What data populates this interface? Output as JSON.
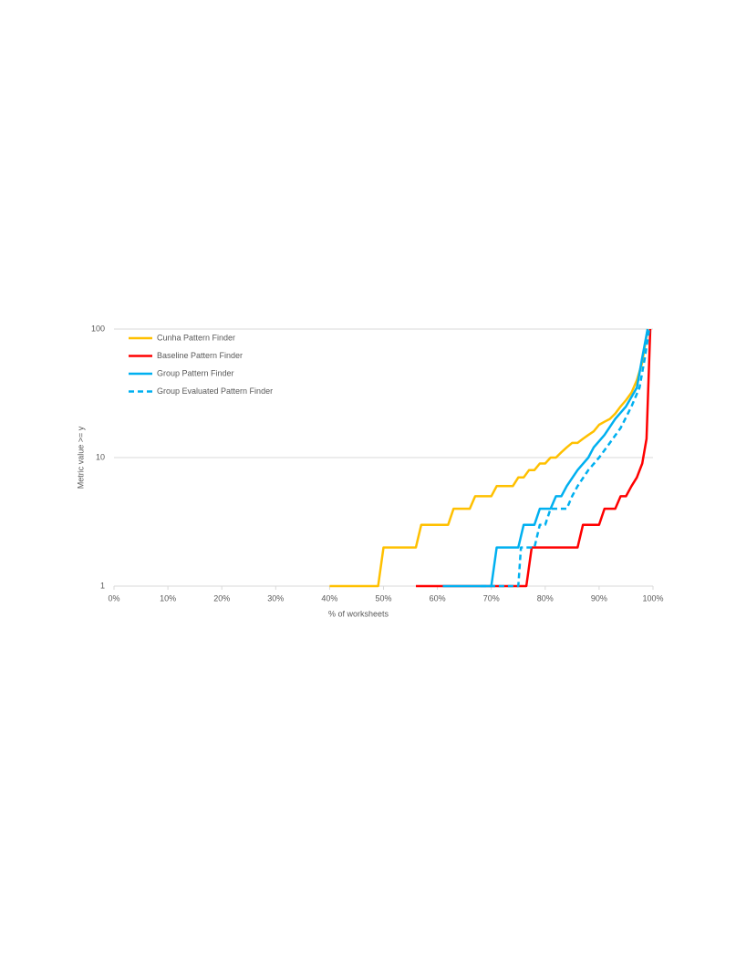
{
  "chart_data": {
    "type": "line",
    "xlabel": "% of worksheets",
    "ylabel": "Metric value >= y",
    "xlim": [
      0,
      100
    ],
    "xticks": [
      {
        "value": 0,
        "label": "0%"
      },
      {
        "value": 10,
        "label": "10%"
      },
      {
        "value": 20,
        "label": "20%"
      },
      {
        "value": 30,
        "label": "30%"
      },
      {
        "value": 40,
        "label": "40%"
      },
      {
        "value": 50,
        "label": "50%"
      },
      {
        "value": 60,
        "label": "60%"
      },
      {
        "value": 70,
        "label": "70%"
      },
      {
        "value": 80,
        "label": "80%"
      },
      {
        "value": 90,
        "label": "90%"
      },
      {
        "value": 100,
        "label": "100%"
      }
    ],
    "ylim": [
      1,
      100
    ],
    "yticks": [
      1,
      10,
      100
    ],
    "log_y": true,
    "grid": true,
    "legend": "top-left",
    "series": [
      {
        "name": "Cunha Pattern Finder",
        "color": "#FFC000",
        "dashed": false,
        "x": [
          40,
          49,
          50,
          56,
          57,
          62,
          63,
          66,
          67,
          70,
          71,
          74,
          75,
          76,
          77,
          78,
          79,
          80,
          81,
          82,
          83,
          84,
          85,
          86,
          87,
          88,
          89,
          90,
          91,
          92,
          93,
          94,
          95,
          96,
          97,
          98,
          99
        ],
        "values": [
          1,
          1,
          2,
          2,
          3,
          3,
          4,
          4,
          5,
          5,
          6,
          6,
          7,
          7,
          8,
          8,
          9,
          9,
          10,
          10,
          11,
          12,
          13,
          13,
          14,
          15,
          16,
          18,
          19,
          20,
          22,
          25,
          28,
          32,
          40,
          55,
          100
        ]
      },
      {
        "name": "Baseline Pattern Finder",
        "color": "#FF0000",
        "dashed": false,
        "x": [
          56,
          76.5,
          77.5,
          86,
          87,
          90,
          91,
          93,
          94,
          95,
          96,
          97,
          98,
          98.8,
          99.5
        ],
        "values": [
          1,
          1,
          2,
          2,
          3,
          3,
          4,
          4,
          5,
          5,
          6,
          7,
          9,
          14,
          100
        ]
      },
      {
        "name": "Group Pattern Finder",
        "color": "#00B0F0",
        "dashed": false,
        "x": [
          61,
          70,
          71,
          75,
          76,
          78,
          79,
          81,
          82,
          83,
          84,
          86,
          88,
          89,
          91,
          93,
          95,
          97,
          98,
          99
        ],
        "values": [
          1,
          1,
          2,
          2,
          3,
          3,
          4,
          4,
          5,
          5,
          6,
          8,
          10,
          12,
          15,
          20,
          25,
          35,
          60,
          100
        ]
      },
      {
        "name": "Group Evaluated Pattern Finder",
        "color": "#00B0F0",
        "dashed": true,
        "x": [
          68,
          75,
          75.5,
          78,
          79,
          80,
          81,
          84,
          85,
          86,
          88,
          90,
          92,
          94,
          96,
          97.5,
          98.5,
          99.3
        ],
        "values": [
          1,
          1,
          2,
          2,
          3,
          3,
          4,
          4,
          5,
          6,
          8,
          10,
          13,
          17,
          25,
          35,
          60,
          100
        ]
      }
    ]
  }
}
